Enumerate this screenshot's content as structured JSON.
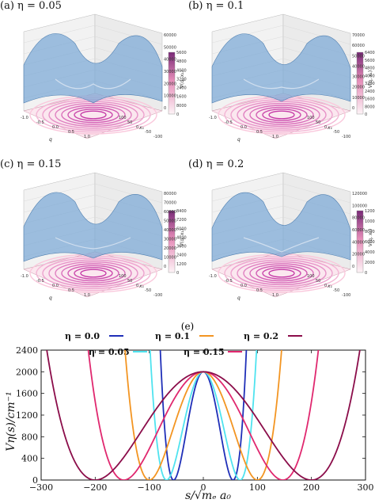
{
  "panels": [
    {
      "label": "(a) η = 0.05",
      "colorbar_ticks": [
        "56000",
        "48000",
        "40000",
        "32000",
        "24000",
        "16000",
        "8000",
        "0"
      ],
      "zticks": [
        "60000",
        "50000",
        "40000",
        "30000",
        "20000",
        "10000",
        "0"
      ]
    },
    {
      "label": "(b) η = 0.1",
      "colorbar_ticks": [
        "64000",
        "56000",
        "48000",
        "40000",
        "32000",
        "24000",
        "16000",
        "8000",
        "0"
      ],
      "zticks": [
        "70000",
        "60000",
        "50000",
        "40000",
        "30000",
        "20000",
        "10000",
        "0"
      ]
    },
    {
      "label": "(c) η = 0.15",
      "colorbar_ticks": [
        "84000",
        "72000",
        "60000",
        "48000",
        "36000",
        "24000",
        "12000",
        "0"
      ],
      "zticks": [
        "80000",
        "70000",
        "60000",
        "50000",
        "40000",
        "30000",
        "20000",
        "10000",
        "0"
      ]
    },
    {
      "label": "(d) η = 0.2",
      "colorbar_ticks": [
        "120000",
        "100000",
        "80000",
        "60000",
        "40000",
        "20000",
        "0"
      ],
      "zticks": [
        "120000",
        "100000",
        "80000",
        "60000",
        "40000",
        "20000",
        "0"
      ]
    }
  ],
  "surface_axes": {
    "q_label": "q",
    "x1_label": "x₁",
    "z_label": "V(q, x₁)",
    "q_ticks": [
      "-1.0",
      "-0.5",
      "0.0",
      "0.5",
      "1.0"
    ],
    "x1_ticks": [
      "100",
      "50",
      "0",
      "-50",
      "-100"
    ]
  },
  "chart_e": {
    "panel_label": "(e)",
    "xlabel": "s/√mₑ a₀",
    "ylabel": "Vη(s)/cm⁻¹",
    "xlim": [
      -300,
      300
    ],
    "ylim": [
      0,
      2400
    ],
    "xticks": [
      "-300",
      "-200",
      "-100",
      "0",
      "100",
      "200",
      "300"
    ],
    "yticks": [
      "0",
      "400",
      "800",
      "1200",
      "1600",
      "2000",
      "2400"
    ]
  },
  "chart_data": {
    "type": "line",
    "title": "",
    "xlabel": "s/√mₑ a₀",
    "ylabel": "Vη(s)/cm⁻¹",
    "xlim": [
      -300,
      300
    ],
    "ylim": [
      0,
      2400
    ],
    "grid": false,
    "legend_placement": "top",
    "barrier_height": 2000,
    "series": [
      {
        "name": "η = 0.0",
        "color": "#1f2fb8",
        "minima": [
          -55,
          55
        ]
      },
      {
        "name": "η = 0.05",
        "color": "#4fe3ef",
        "minima": [
          -68,
          68
        ]
      },
      {
        "name": "η = 0.1",
        "color": "#f39522",
        "minima": [
          -100,
          100
        ]
      },
      {
        "name": "η = 0.15",
        "color": "#e0286f",
        "minima": [
          -147,
          147
        ]
      },
      {
        "name": "η = 0.2",
        "color": "#8b0d4a",
        "minima": [
          -200,
          200
        ]
      }
    ]
  }
}
